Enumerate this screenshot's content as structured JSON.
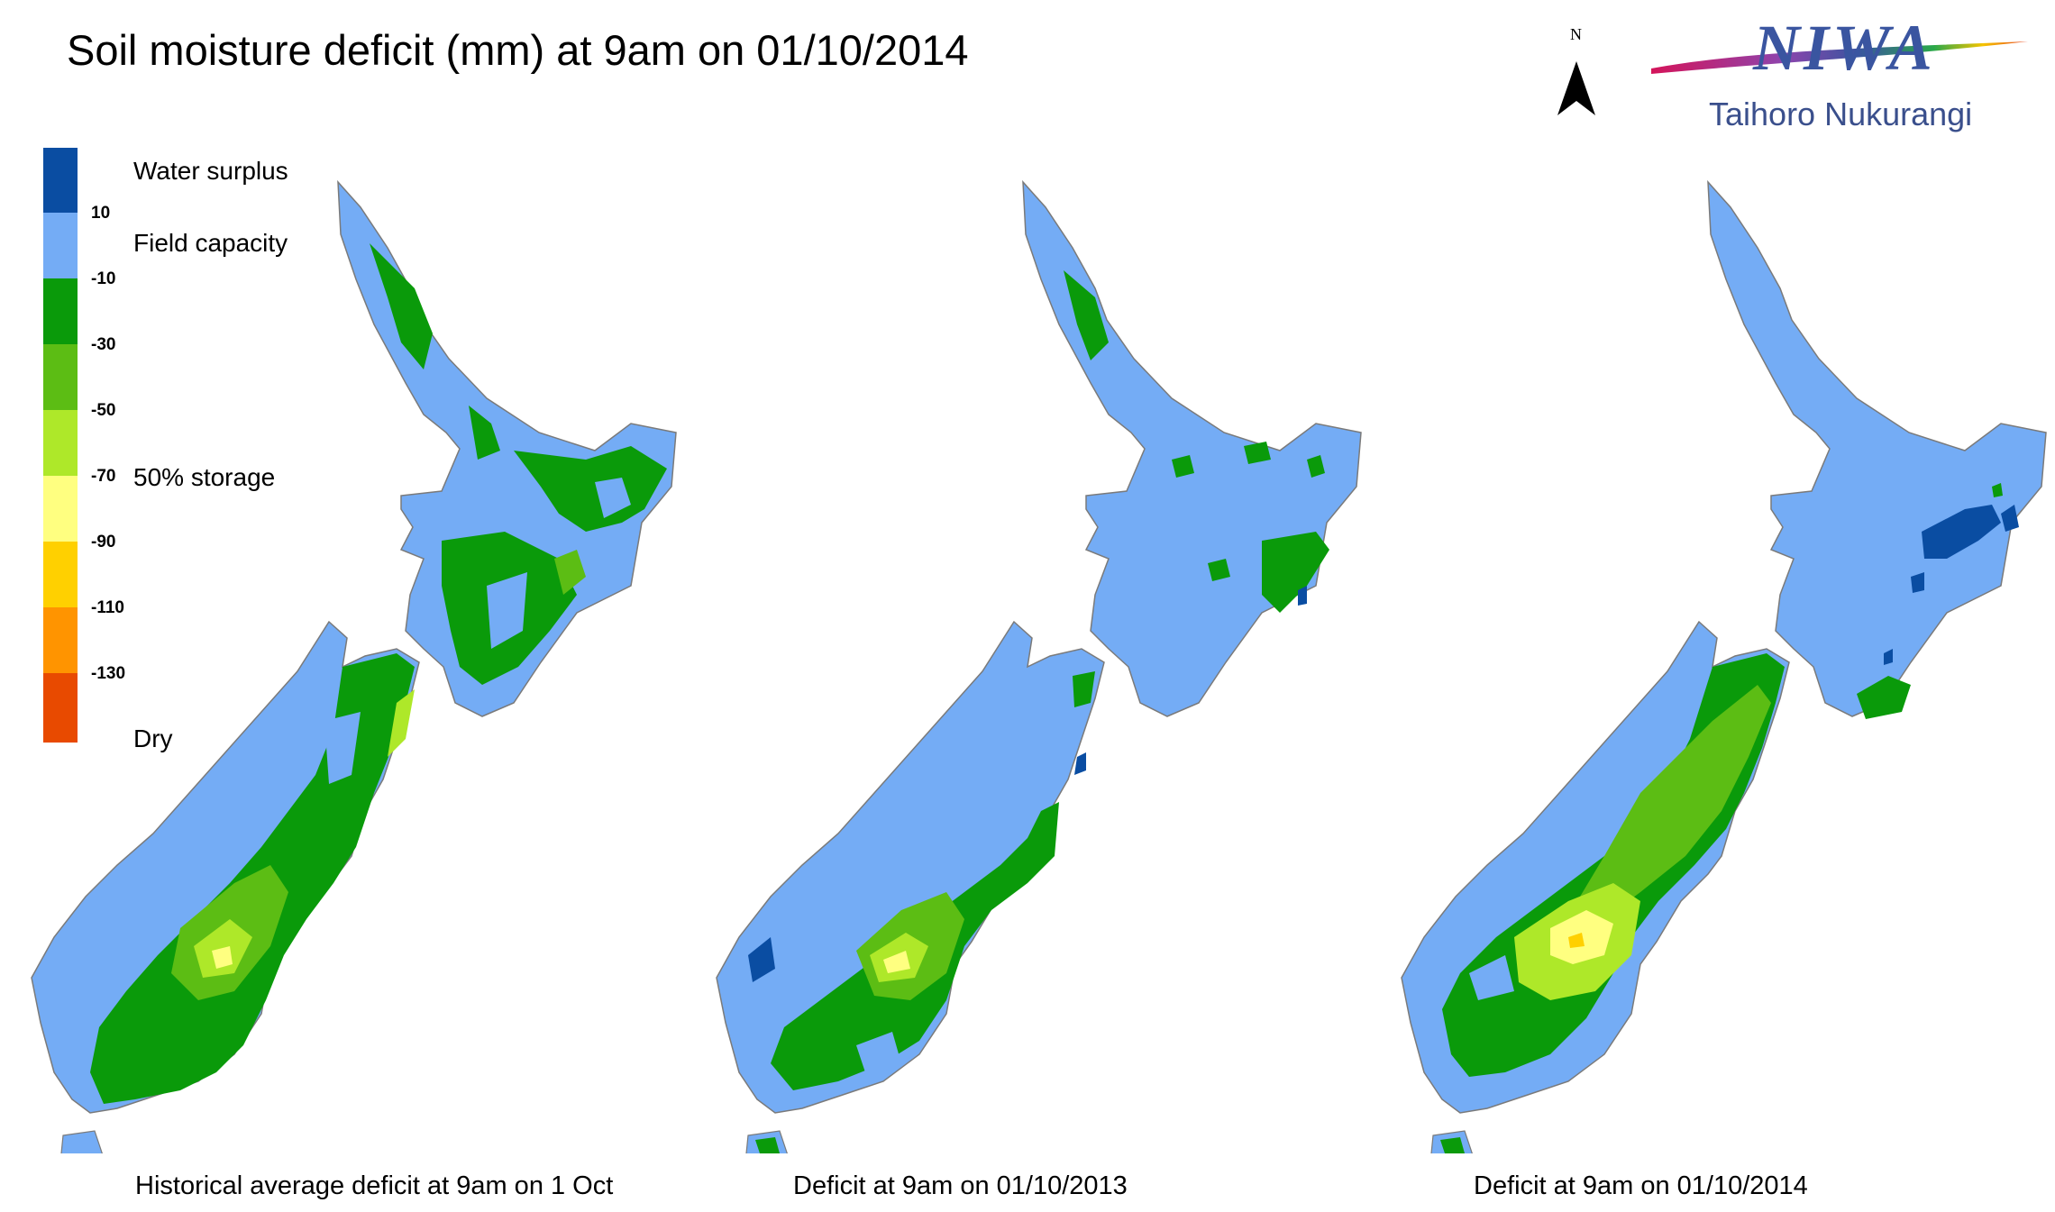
{
  "title": "Soil moisture deficit (mm) at  9am on 01/10/2014",
  "north_label": "N",
  "logo": {
    "wordmark": "NIWA",
    "subtitle": "Taihoro Nukurangi"
  },
  "legend": {
    "bands": [
      {
        "color": "#0a4da2",
        "name": "Water surplus"
      },
      {
        "color": "#74acf5",
        "name": "Field capacity"
      },
      {
        "color": "#0a9a0a",
        "name": "-10 to -30"
      },
      {
        "color": "#5cbd14",
        "name": "-30 to -50"
      },
      {
        "color": "#aee829",
        "name": "-50 to -70"
      },
      {
        "color": "#ffff80",
        "name": "-70 to -90"
      },
      {
        "color": "#ffd000",
        "name": "-90 to -110"
      },
      {
        "color": "#ff9400",
        "name": "-110 to -130"
      },
      {
        "color": "#e84a00",
        "name": "Dry"
      }
    ],
    "ticks": [
      "10",
      "-10",
      "-30",
      "-50",
      "-70",
      "-90",
      "-110",
      "-130"
    ],
    "labels": {
      "surplus": "Water surplus",
      "field_capacity": "Field capacity",
      "half_storage": "50% storage",
      "dry": "Dry"
    }
  },
  "maps": [
    {
      "caption": "Historical average deficit at  9am on 1 Oct",
      "scenario": "historical"
    },
    {
      "caption": "Deficit at  9am on 01/10/2013",
      "scenario": "2013"
    },
    {
      "caption": "Deficit at  9am on 01/10/2014",
      "scenario": "2014"
    }
  ]
}
